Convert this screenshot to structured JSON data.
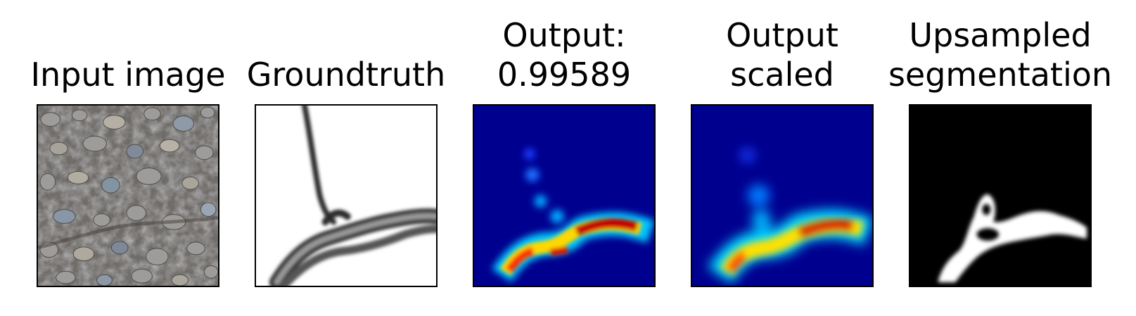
{
  "figure": {
    "panels": [
      {
        "title": "Input image",
        "content": "gravel-road-photo"
      },
      {
        "title": "Groundtruth",
        "content": "crack-mask"
      },
      {
        "title": "Output:\n0.99589",
        "content": "jet-heatmap"
      },
      {
        "title": "Output\nscaled",
        "content": "jet-heatmap-scaled"
      },
      {
        "title": "Upsampled\nsegmentation",
        "content": "binary-segmentation"
      }
    ],
    "colors": {
      "heatmap_background": "#00008f",
      "segmentation_background": "#000000"
    }
  }
}
